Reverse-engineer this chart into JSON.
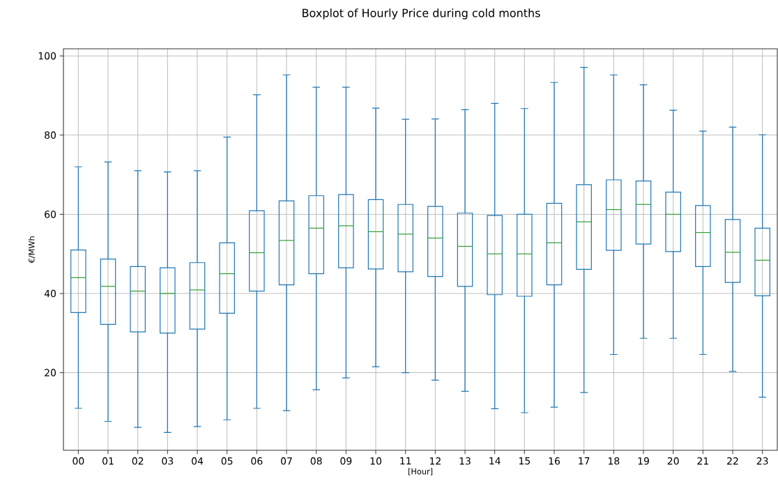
{
  "chart_data": {
    "type": "box",
    "title": "Boxplot of Hourly Price during cold months",
    "xlabel": "[Hour]",
    "ylabel": "€/MWh",
    "categories": [
      "00",
      "01",
      "02",
      "03",
      "04",
      "05",
      "06",
      "07",
      "08",
      "09",
      "10",
      "11",
      "12",
      "13",
      "14",
      "15",
      "16",
      "17",
      "18",
      "19",
      "20",
      "21",
      "22",
      "23"
    ],
    "ylim": [
      0.4,
      101.8
    ],
    "yticks": [
      20,
      40,
      60,
      80,
      100
    ],
    "grid": true,
    "series": [
      {
        "color": "#1f77b4",
        "boxes": [
          {
            "low": 11,
            "q1": 35.2,
            "median": 44,
            "q3": 51,
            "high": 72
          },
          {
            "low": 7.7,
            "q1": 32.2,
            "median": 41.8,
            "q3": 48.7,
            "high": 73.2
          },
          {
            "low": 6.2,
            "q1": 30.3,
            "median": 40.6,
            "q3": 46.8,
            "high": 71
          },
          {
            "low": 4.9,
            "q1": 30,
            "median": 40,
            "q3": 46.5,
            "high": 70.7
          },
          {
            "low": 6.4,
            "q1": 31,
            "median": 40.9,
            "q3": 47.8,
            "high": 71
          },
          {
            "low": 8.1,
            "q1": 35,
            "median": 45,
            "q3": 52.8,
            "high": 79.5
          },
          {
            "low": 11,
            "q1": 40.6,
            "median": 50.3,
            "q3": 60.9,
            "high": 90.2
          },
          {
            "low": 10.4,
            "q1": 42.2,
            "median": 53.4,
            "q3": 63.4,
            "high": 95.2
          },
          {
            "low": 15.7,
            "q1": 45,
            "median": 56.5,
            "q3": 64.7,
            "high": 92.1
          },
          {
            "low": 18.7,
            "q1": 46.5,
            "median": 57.1,
            "q3": 65,
            "high": 92.1
          },
          {
            "low": 21.5,
            "q1": 46.2,
            "median": 55.6,
            "q3": 63.7,
            "high": 86.8
          },
          {
            "low": 20,
            "q1": 45.5,
            "median": 55,
            "q3": 62.5,
            "high": 84
          },
          {
            "low": 18.1,
            "q1": 44.3,
            "median": 54,
            "q3": 62,
            "high": 84.1
          },
          {
            "low": 15.3,
            "q1": 41.8,
            "median": 51.9,
            "q3": 60.3,
            "high": 86.4
          },
          {
            "low": 10.9,
            "q1": 39.7,
            "median": 50,
            "q3": 59.7,
            "high": 88
          },
          {
            "low": 9.9,
            "q1": 39.3,
            "median": 50,
            "q3": 60,
            "high": 86.7
          },
          {
            "low": 11.3,
            "q1": 42.2,
            "median": 52.8,
            "q3": 62.8,
            "high": 93.3
          },
          {
            "low": 15,
            "q1": 46.1,
            "median": 58.1,
            "q3": 67.5,
            "high": 97.1
          },
          {
            "low": 24.6,
            "q1": 50.9,
            "median": 61.2,
            "q3": 68.7,
            "high": 95.2
          },
          {
            "low": 28.7,
            "q1": 52.5,
            "median": 62.5,
            "q3": 68.4,
            "high": 92.7
          },
          {
            "low": 28.7,
            "q1": 50.6,
            "median": 60,
            "q3": 65.6,
            "high": 86.3
          },
          {
            "low": 24.6,
            "q1": 46.8,
            "median": 55.4,
            "q3": 62.2,
            "high": 81
          },
          {
            "low": 20.3,
            "q1": 42.8,
            "median": 50.4,
            "q3": 58.7,
            "high": 82
          },
          {
            "low": 13.8,
            "q1": 39.4,
            "median": 48.4,
            "q3": 56.5,
            "high": 80.1
          }
        ]
      }
    ]
  }
}
